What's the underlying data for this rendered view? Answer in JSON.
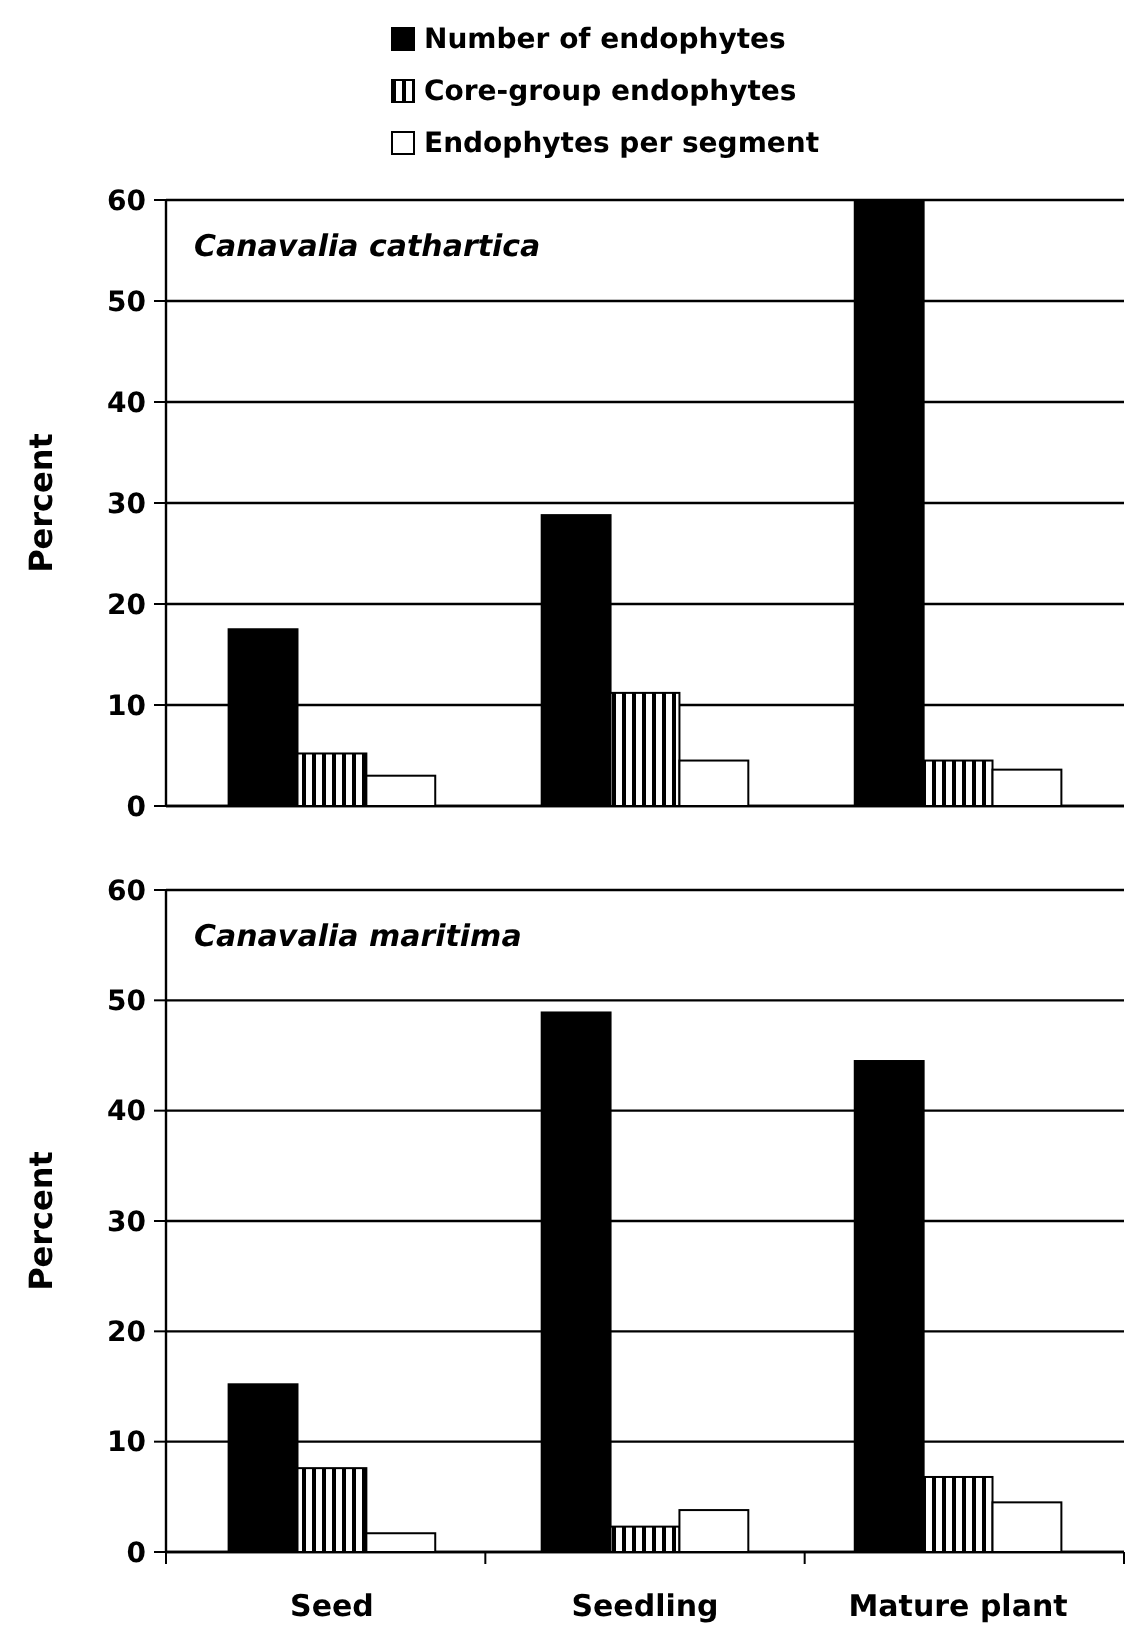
{
  "chart_data": [
    {
      "type": "bar",
      "title": "Canavalia cathartica",
      "ylabel": "Percent",
      "categories": [
        null,
        null,
        null
      ],
      "series": [
        {
          "name": "Number of endophytes",
          "color": "#000000",
          "values": [
            17.5,
            28.8,
            60
          ]
        },
        {
          "name": "Core-group endophytes",
          "color": "#000000",
          "values": [
            5.2,
            11.2,
            4.5
          ]
        },
        {
          "name": "Endophytes per segment",
          "color": "#ffffff",
          "values": [
            3,
            4.5,
            3.6
          ]
        }
      ],
      "ylim": [
        0,
        60
      ],
      "yticks": [
        0,
        10,
        20,
        30,
        40,
        50,
        60
      ],
      "grid": "y",
      "legend": "top",
      "tick_labels": "y"
    },
    {
      "type": "bar",
      "title": "Canavalia maritima",
      "ylabel": "Percent",
      "categories": [
        "Seed",
        "Seedling",
        "Mature plant"
      ],
      "series": [
        {
          "color": "#000000",
          "values": [
            15.2,
            48.9,
            44.5
          ]
        },
        {
          "color": "#000000",
          "values": [
            7.6,
            2.3,
            6.8
          ]
        },
        {
          "color": "#ffffff",
          "values": [
            1.7,
            3.8,
            4.5
          ]
        }
      ],
      "ylim": [
        0,
        60
      ],
      "yticks": [
        0,
        10,
        20,
        30,
        40,
        50,
        60
      ],
      "grid": "y"
    }
  ]
}
